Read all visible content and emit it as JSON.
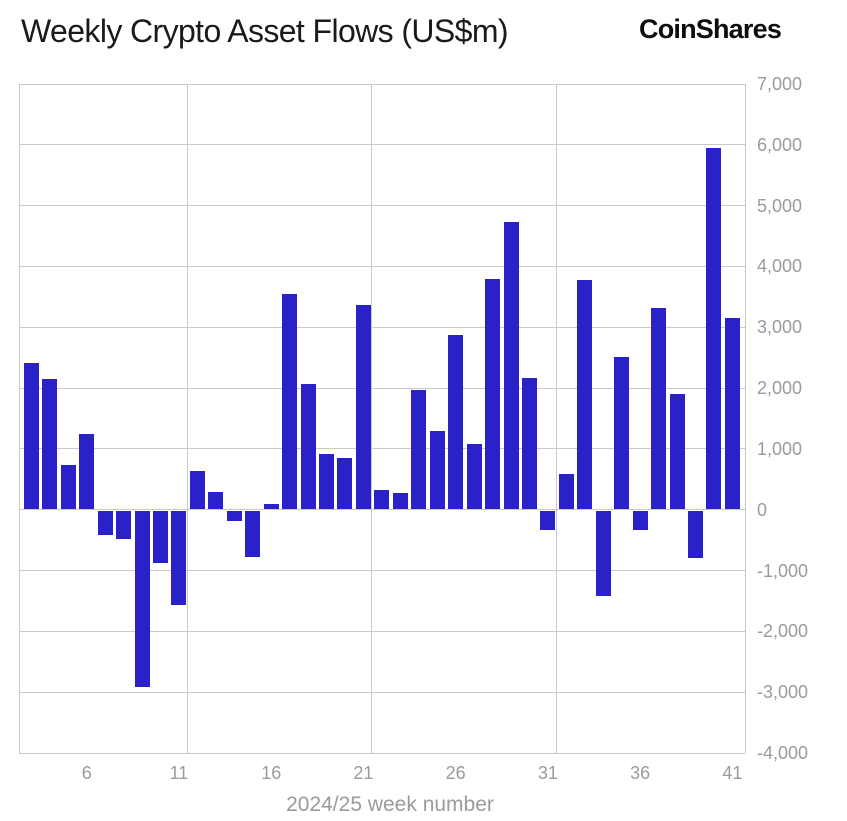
{
  "header": {
    "title": "Weekly Crypto Asset Flows (US$m)",
    "logo": "CoinShares"
  },
  "chart_data": {
    "type": "bar",
    "title": "Weekly Crypto Asset Flows (US$m)",
    "xlabel": "2024/25 week number",
    "ylabel": "",
    "x": [
      3,
      4,
      5,
      6,
      7,
      8,
      9,
      10,
      11,
      12,
      13,
      14,
      15,
      16,
      17,
      18,
      19,
      20,
      21,
      22,
      23,
      24,
      25,
      26,
      27,
      28,
      29,
      30,
      31,
      32,
      33,
      34,
      35,
      36,
      37,
      38,
      39,
      40,
      41
    ],
    "values": [
      2410,
      2150,
      740,
      1250,
      -420,
      -480,
      -2920,
      -870,
      -1570,
      630,
      290,
      -190,
      -780,
      100,
      3550,
      2060,
      920,
      850,
      3360,
      320,
      270,
      1970,
      1290,
      2880,
      1080,
      3790,
      4730,
      2170,
      -330,
      590,
      3770,
      -1420,
      2510,
      -340,
      3310,
      1900,
      -800,
      5950,
      3160
    ],
    "ylim": [
      -4000,
      7000
    ],
    "ytick_values": [
      7000,
      6000,
      5000,
      4000,
      3000,
      2000,
      1000,
      0,
      -1000,
      -2000,
      -3000,
      -4000
    ],
    "ytick_labels": [
      "7,000",
      "6,000",
      "5,000",
      "4,000",
      "3,000",
      "2,000",
      "1,000",
      "0",
      "-1,000",
      "-2,000",
      "-3,000",
      "-4,000"
    ],
    "xticks": [
      6,
      11,
      16,
      21,
      26,
      31,
      36,
      41
    ],
    "xtick_labels": [
      "6",
      "11",
      "16",
      "21",
      "26",
      "31",
      "36",
      "41"
    ],
    "vertical_gridline_weeks": [
      11,
      21,
      31
    ],
    "grid": true,
    "legend_position": "none",
    "bar_color": "#2a21c9",
    "grid_color": "#c9c9c9",
    "label_color": "#9b9b9b"
  }
}
